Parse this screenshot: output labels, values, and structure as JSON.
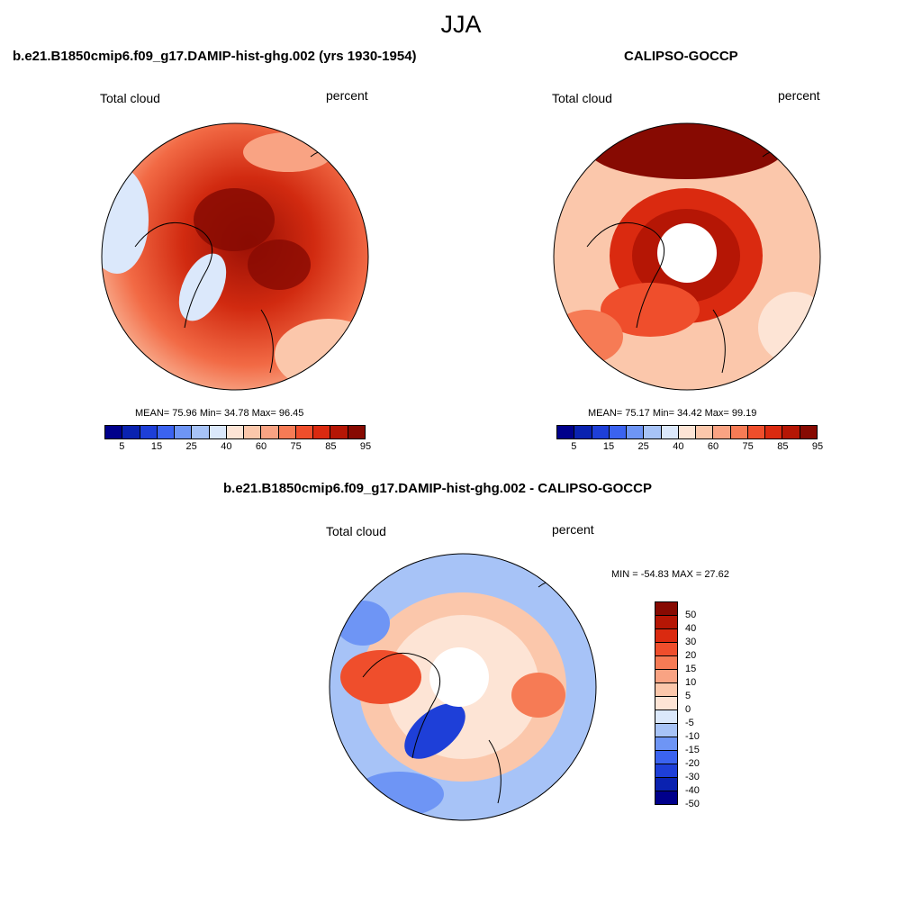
{
  "title": "JJA",
  "panel_left": {
    "title": "b.e21.B1850cmip6.f09_g17.DAMIP-hist-ghg.002 (yrs 1930-1954)",
    "left_label": "Total cloud",
    "right_label": "percent",
    "stats": "MEAN=  75.96  Min=  34.78  Max=  96.45"
  },
  "panel_right": {
    "title": "CALIPSO-GOCCP",
    "left_label": "Total cloud",
    "right_label": "percent",
    "stats": "MEAN=  75.17  Min=  34.42  Max=  99.19"
  },
  "panel_diff": {
    "title": "b.e21.B1850cmip6.f09_g17.DAMIP-hist-ghg.002 - CALIPSO-GOCCP",
    "left_label": "Total cloud",
    "right_label": "percent",
    "stats": "MIN = -54.83 MAX =  27.62"
  },
  "colorbar_top": {
    "colors": [
      "#00008b",
      "#0a22b0",
      "#1e3fd8",
      "#3b63f0",
      "#6e95f5",
      "#a7c3f7",
      "#dbe8fb",
      "#fde4d5",
      "#fbc7ab",
      "#f9a383",
      "#f67b55",
      "#ef4e2c",
      "#da2a10",
      "#b51605",
      "#870a02"
    ],
    "tick_labels": [
      "5",
      "15",
      "25",
      "40",
      "60",
      "75",
      "85",
      "95"
    ]
  },
  "colorbar_diff": {
    "colors": [
      "#870a02",
      "#b51605",
      "#da2a10",
      "#ef4e2c",
      "#f67b55",
      "#f9a383",
      "#fbc7ab",
      "#fde4d5",
      "#dbe8fb",
      "#a7c3f7",
      "#6e95f5",
      "#3b63f0",
      "#1e3fd8",
      "#0a22b0",
      "#00008b"
    ],
    "tick_labels": [
      "50",
      "40",
      "30",
      "20",
      "15",
      "10",
      "5",
      "0",
      "-5",
      "-10",
      "-15",
      "-20",
      "-30",
      "-40",
      "-50"
    ]
  }
}
